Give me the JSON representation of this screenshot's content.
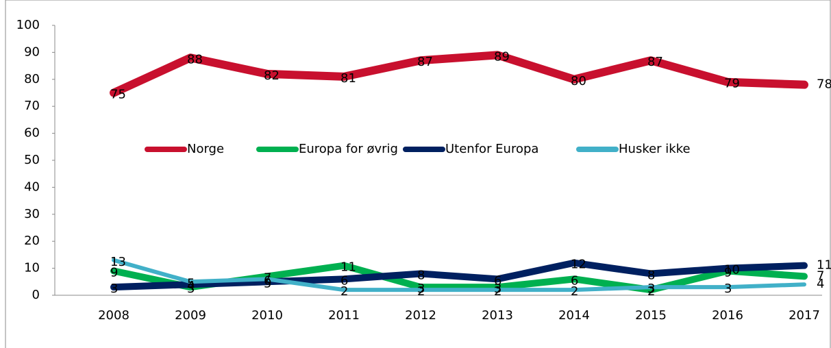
{
  "chart_data": {
    "type": "line",
    "categories": [
      "2008",
      "2009",
      "2010",
      "2011",
      "2012",
      "2013",
      "2014",
      "2015",
      "2016",
      "2017"
    ],
    "series": [
      {
        "name": "Norge",
        "color": "#c8102e",
        "values": [
          75,
          88,
          82,
          81,
          87,
          89,
          80,
          87,
          79,
          78
        ]
      },
      {
        "name": "Europa for øvrig",
        "color": "#00b050",
        "values": [
          9,
          3,
          7,
          11,
          3,
          3,
          6,
          2,
          9,
          7
        ]
      },
      {
        "name": "Utenfor Europa",
        "color": "#002060",
        "values": [
          3,
          4,
          5,
          6,
          8,
          6,
          12,
          8,
          10,
          11
        ]
      },
      {
        "name": "Husker ikke",
        "color": "#41b0c8",
        "values": [
          13,
          5,
          6,
          2,
          2,
          2,
          2,
          3,
          3,
          4
        ]
      }
    ],
    "ylim": [
      0,
      100
    ],
    "yticks": [
      0,
      10,
      20,
      30,
      40,
      50,
      60,
      70,
      80,
      90,
      100
    ],
    "legend": "center"
  }
}
